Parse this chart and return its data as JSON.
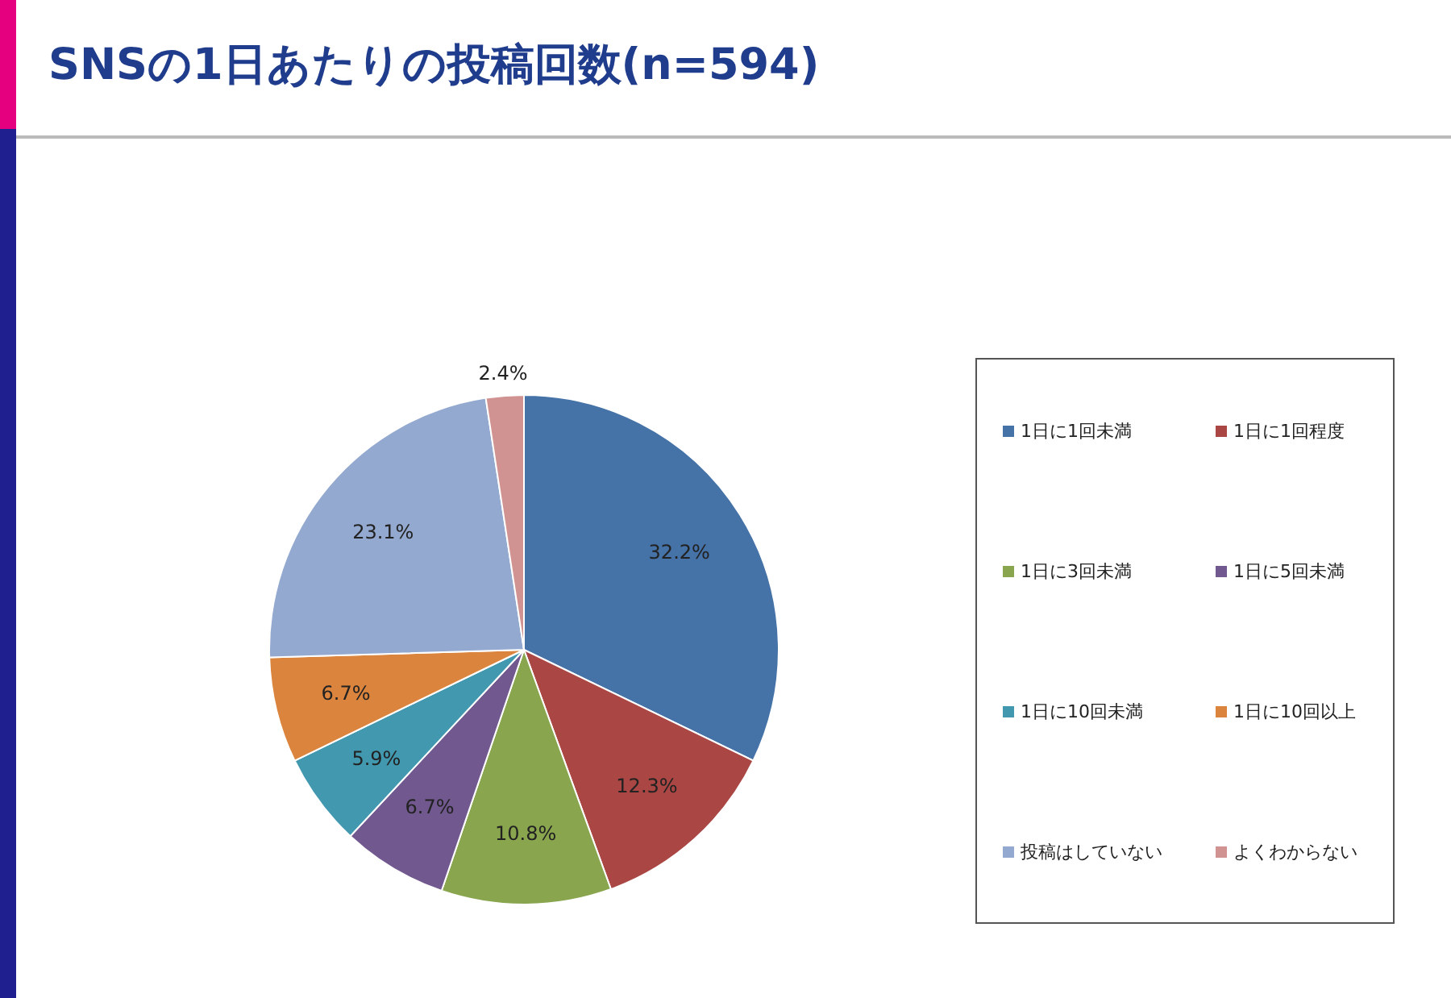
{
  "chart_data": {
    "type": "pie",
    "title": "SNSの1日あたりの投稿回数(n=594)",
    "categories": [
      "1日に1回未満",
      "1日に1回程度",
      "1日に3回未満",
      "1日に5回未満",
      "1日に10回未満",
      "1日に10回以上",
      "投稿はしていない",
      "よくわからない"
    ],
    "values": [
      32.2,
      12.3,
      10.8,
      6.7,
      5.9,
      6.7,
      23.1,
      2.4
    ],
    "colors": [
      "#4572a7",
      "#aa4643",
      "#89a54e",
      "#71588f",
      "#4198af",
      "#db843d",
      "#93a9cf",
      "#d19392"
    ],
    "value_labels": [
      "32.2%",
      "12.3%",
      "10.8%",
      "6.7%",
      "5.9%",
      "6.7%",
      "23.1%",
      "2.4%"
    ],
    "legend": "right"
  }
}
